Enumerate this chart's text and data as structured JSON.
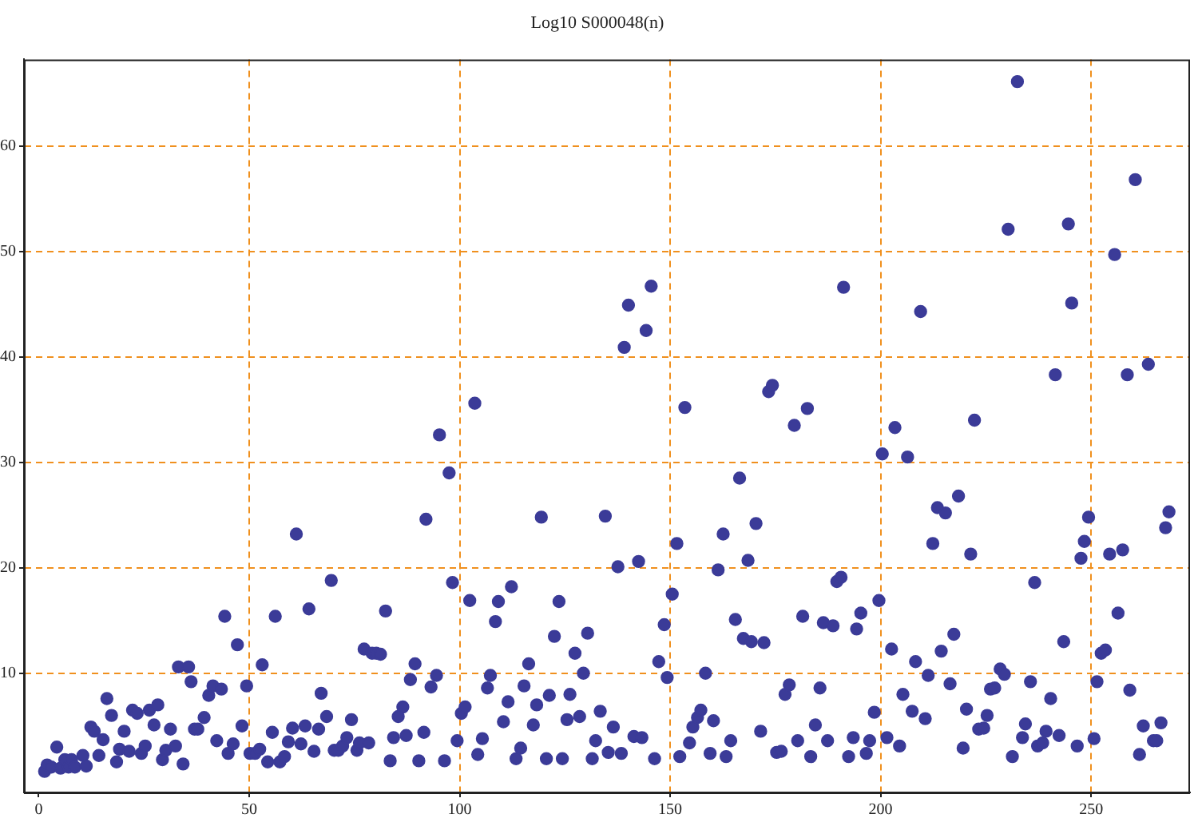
{
  "chart_data": {
    "type": "scatter",
    "title": "Log10 S000048(n)",
    "x": [
      1.4,
      2,
      3,
      4.3,
      5.2,
      6.2,
      7.1,
      7.8,
      8.6,
      10.5,
      11.3,
      12.4,
      13.2,
      14.3,
      15.3,
      16.2,
      17.3,
      18.5,
      19.2,
      20.3,
      21.5,
      22.3,
      23.4,
      24.4,
      25.3,
      26.3,
      27.4,
      28.3,
      29.4,
      30.2,
      31.3,
      32.5,
      33.2,
      34.3,
      35.6,
      36.2,
      37,
      37.8,
      39.3,
      40.4,
      41.4,
      42.3,
      43.4,
      44.2,
      45,
      46.2,
      47.2,
      48.3,
      49.4,
      50.2,
      51.4,
      52.5,
      53.1,
      54.4,
      55.5,
      56.2,
      57.3,
      58.4,
      59.3,
      60.3,
      61.2,
      62.3,
      63.3,
      64.2,
      65.4,
      66.5,
      67.1,
      68.4,
      69.5,
      70.2,
      71.2,
      72.2,
      73.2,
      74.3,
      75.6,
      76.2,
      77.3,
      78.4,
      79.2,
      80.2,
      81.2,
      82.4,
      83.5,
      84.3,
      85.4,
      86.5,
      87.3,
      88.3,
      89.4,
      90.3,
      91.5,
      92,
      93.2,
      94.5,
      95.2,
      96.4,
      97.5,
      98.3,
      99.4,
      100.4,
      101.3,
      102.4,
      103.6,
      104.3,
      105.4,
      106.6,
      107.3,
      108.5,
      109.2,
      110.4,
      111.5,
      112.3,
      113.4,
      114.5,
      115.3,
      116.4,
      117.5,
      118.3,
      119.4,
      120.6,
      121.3,
      122.5,
      123.6,
      124.4,
      125.5,
      126.2,
      127.4,
      128.5,
      129.4,
      130.4,
      131.5,
      132.3,
      133.4,
      134.6,
      135.3,
      136.5,
      137.6,
      138.4,
      139.1,
      140.1,
      141.4,
      142.5,
      143.3,
      144.3,
      145.5,
      146.3,
      147.3,
      148.6,
      149.3,
      150.5,
      151.6,
      152.3,
      153.5,
      154.6,
      155.4,
      156.5,
      157.3,
      158.4,
      159.5,
      160.3,
      161.4,
      162.6,
      163.3,
      164.4,
      165.5,
      166.5,
      167.4,
      168.5,
      169.3,
      170.4,
      171.5,
      172.3,
      173.4,
      174.3,
      175.3,
      176.4,
      177.3,
      178.3,
      179.5,
      180.3,
      181.5,
      182.6,
      183.4,
      184.5,
      185.6,
      186.4,
      187.4,
      188.7,
      189.6,
      190.6,
      191.2,
      192.4,
      193.5,
      194.3,
      195.3,
      196.6,
      197.4,
      198.5,
      199.6,
      200.4,
      201.5,
      202.6,
      203.4,
      204.5,
      205.3,
      206.4,
      207.5,
      208.3,
      209.5,
      210.6,
      211.3,
      212.4,
      213.5,
      214.4,
      215.4,
      216.5,
      217.4,
      218.5,
      219.6,
      220.4,
      221.4,
      222.3,
      223.3,
      224.5,
      225.3,
      226.1,
      227.1,
      228.4,
      229.4,
      230.3,
      231.3,
      232.5,
      233.7,
      234.4,
      235.6,
      236.6,
      237.3,
      238.5,
      239.3,
      240.4,
      241.5,
      242.4,
      243.5,
      244.6,
      245.4,
      246.7,
      247.6,
      248.4,
      249.4,
      250.7,
      251.4,
      252.4,
      253.4,
      254.4,
      255.6,
      256.4,
      257.5,
      258.6,
      259.2,
      260.5,
      261.5,
      262.4,
      263.6,
      264.8,
      265.6,
      266.6,
      267.7,
      268.5
    ],
    "values": [
      0.7,
      1.3,
      1.1,
      3.0,
      1.0,
      1.8,
      1.1,
      1.8,
      1.1,
      2.2,
      1.2,
      4.9,
      4.5,
      2.2,
      3.7,
      7.6,
      6.0,
      1.6,
      2.8,
      4.5,
      2.6,
      6.5,
      6.2,
      2.4,
      3.1,
      6.5,
      5.1,
      7.0,
      1.8,
      2.7,
      4.7,
      3.1,
      10.6,
      1.4,
      10.6,
      9.2,
      4.7,
      4.7,
      5.8,
      7.9,
      8.8,
      3.6,
      8.5,
      15.4,
      2.4,
      3.3,
      12.7,
      5.0,
      8.8,
      2.4,
      2.4,
      2.8,
      10.8,
      1.6,
      4.4,
      15.4,
      1.6,
      2.1,
      3.5,
      4.8,
      23.2,
      3.3,
      5.0,
      16.1,
      2.6,
      4.7,
      8.1,
      5.9,
      18.8,
      2.7,
      2.7,
      3.1,
      3.9,
      5.6,
      2.7,
      3.4,
      12.3,
      3.4,
      11.9,
      11.9,
      11.8,
      15.9,
      1.7,
      3.9,
      5.9,
      6.8,
      4.1,
      9.4,
      10.9,
      1.7,
      4.4,
      24.6,
      8.7,
      9.8,
      32.6,
      1.7,
      29.0,
      18.6,
      3.6,
      6.2,
      6.8,
      16.9,
      35.6,
      2.3,
      3.8,
      8.6,
      9.8,
      14.9,
      16.8,
      5.4,
      7.3,
      18.2,
      1.9,
      2.9,
      8.8,
      10.9,
      5.1,
      7.0,
      24.8,
      1.9,
      7.9,
      13.5,
      16.8,
      1.9,
      5.6,
      8.0,
      11.9,
      5.9,
      10.0,
      13.8,
      1.9,
      3.6,
      6.4,
      24.9,
      2.5,
      4.9,
      20.1,
      2.4,
      40.9,
      44.9,
      4.0,
      20.6,
      3.9,
      42.5,
      46.7,
      1.9,
      11.1,
      14.6,
      9.6,
      17.5,
      22.3,
      2.1,
      35.2,
      3.4,
      4.9,
      5.8,
      6.5,
      10.0,
      2.4,
      5.5,
      19.8,
      23.2,
      2.1,
      3.6,
      15.1,
      28.5,
      13.3,
      20.7,
      13.0,
      24.2,
      4.5,
      12.9,
      36.7,
      37.3,
      2.5,
      2.6,
      8.0,
      8.9,
      33.5,
      3.6,
      15.4,
      35.1,
      2.1,
      5.1,
      8.6,
      14.8,
      3.6,
      14.5,
      18.7,
      19.1,
      46.6,
      2.1,
      3.9,
      14.2,
      15.7,
      2.4,
      3.6,
      6.3,
      16.9,
      30.8,
      3.9,
      12.3,
      33.3,
      3.1,
      8.0,
      30.5,
      6.4,
      11.1,
      44.3,
      5.7,
      9.8,
      22.3,
      25.7,
      12.1,
      25.2,
      9.0,
      13.7,
      26.8,
      2.9,
      6.6,
      21.3,
      34.0,
      4.7,
      4.8,
      6.0,
      8.5,
      8.6,
      10.4,
      9.9,
      52.1,
      2.1,
      66.1,
      3.9,
      5.2,
      9.2,
      18.6,
      3.1,
      3.4,
      4.5,
      7.6,
      38.3,
      4.1,
      13.0,
      52.6,
      45.1,
      3.1,
      20.9,
      22.5,
      24.8,
      3.8,
      9.2,
      11.9,
      12.2,
      21.3,
      49.7,
      15.7,
      21.7,
      38.3,
      8.4,
      56.8,
      2.3,
      5.0,
      39.3,
      3.6,
      3.6,
      5.3,
      23.8,
      25.3
    ],
    "color": "#3b3b98",
    "marker": "circle",
    "xlim": [
      -3.5,
      273.5
    ],
    "xticks": [
      0,
      50,
      100,
      150,
      200,
      250
    ],
    "ylim": [
      -1.3,
      68.2
    ],
    "yticks": [
      10,
      20,
      30,
      40,
      50,
      60
    ],
    "grid": true
  }
}
